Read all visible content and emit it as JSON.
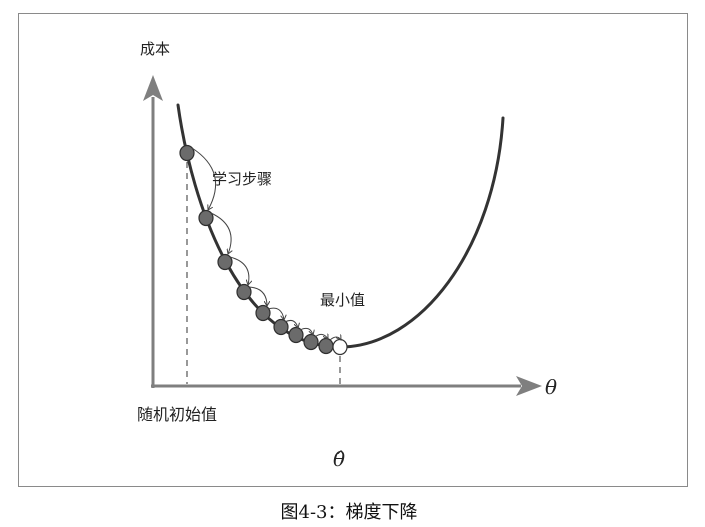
{
  "diagram": {
    "y_axis_label": "成本",
    "x_axis_label": "θ",
    "learning_step_label": "学习步骤",
    "minimum_label": "最小值",
    "random_initial_label": "随机初始值",
    "optimum_label": "θ̂"
  },
  "figure": {
    "caption": "图4-3：梯度下降"
  }
}
